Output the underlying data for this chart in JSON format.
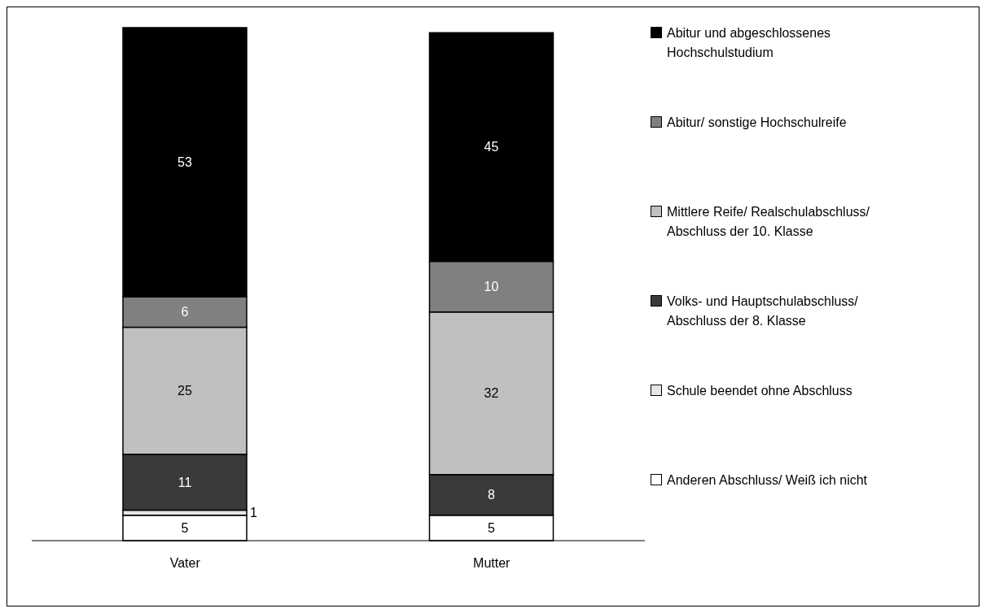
{
  "chart_data": {
    "type": "bar",
    "stacked": true,
    "categories": [
      "Vater",
      "Mutter"
    ],
    "series": [
      {
        "name": "Anderen Abschluss/ Weiß ich nicht",
        "color": "#ffffff",
        "values": [
          5,
          5
        ]
      },
      {
        "name": "Schule beendet ohne Abschluss",
        "color": "#e6e6e6",
        "values": [
          1,
          null
        ]
      },
      {
        "name": "Volks- und Hauptschulabschluss/ Abschluss der 8. Klasse",
        "color": "#3a3a3a",
        "values": [
          11,
          8
        ]
      },
      {
        "name": "Mittlere Reife/ Realschulabschluss/ Abschluss der 10. Klasse",
        "color": "#c0c0c0",
        "values": [
          25,
          32
        ]
      },
      {
        "name": "Abitur/ sonstige Hochschulreife",
        "color": "#808080",
        "values": [
          6,
          10
        ]
      },
      {
        "name": "Abitur und abgeschlossenes Hochschulstudium",
        "color": "#000000",
        "values": [
          53,
          45
        ]
      }
    ],
    "data_labels": true,
    "legend": "right",
    "grid": false
  }
}
